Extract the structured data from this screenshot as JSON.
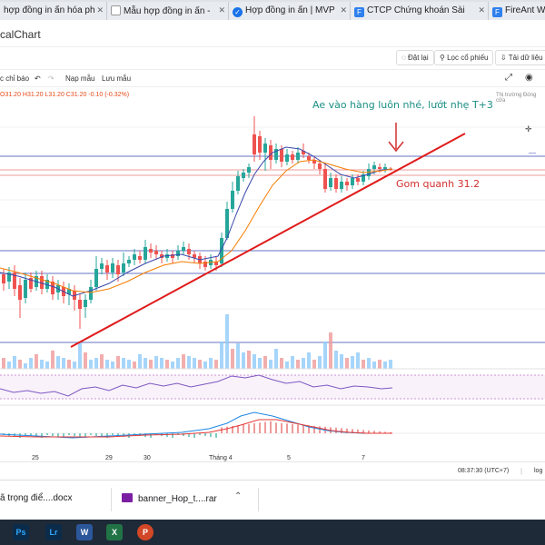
{
  "browser_tabs": [
    {
      "title": "hợp đồng in ấn hóa ph",
      "icon": "web-icon",
      "color": "#ffffff"
    },
    {
      "title": "Mẫu hợp đồng in ấn -",
      "icon": "page-icon",
      "color": "#ffffff"
    },
    {
      "title": "Hợp đồng in ấn | MVP",
      "icon": "shield-icon",
      "color": "#1a73e8"
    },
    {
      "title": "CTCP Chứng khoán Sài",
      "icon": "F",
      "color": "#2f80ed"
    },
    {
      "title": "FireAnt Web",
      "icon": "F",
      "color": "#2f80ed"
    }
  ],
  "page_subtitle": "calChart",
  "toolbar_top": {
    "alert": "Đặt lại",
    "filter": "Lọc cổ phiếu",
    "reload": "Tải dữ liệu"
  },
  "toolbar_chart": {
    "indicators": "c chỉ báo",
    "template_in": "Nạp mẫu",
    "template_save": "Lưu mẫu"
  },
  "ohlc_text": "O31.20 H31.20 L31.20 C31.20 -0.10 (-0.32%)",
  "market_label": "Thị trường Đóng cửa",
  "annotations": {
    "top": "Ae vào hàng luôn nhé, lướt nhẹ T+3",
    "support": "Gom quanh 31.2"
  },
  "x_labels": [
    "25",
    "29",
    "30",
    "Tháng 4",
    "5",
    "7"
  ],
  "time_text": "08:37:30 (UTC+7)",
  "time_suffix": "log",
  "downloads": [
    {
      "name": "ã trọng điể....docx",
      "icon": "word-icon"
    },
    {
      "name": "banner_Hop_t....rar",
      "icon": "archive-icon"
    }
  ],
  "taskbar_apps": [
    {
      "label": "Ps",
      "icon": "photoshop-icon",
      "color": "#0b2b4a"
    },
    {
      "label": "Lr",
      "icon": "lightroom-icon",
      "color": "#0b2b4a"
    },
    {
      "label": "W",
      "icon": "word-icon",
      "color": "#2b579a"
    },
    {
      "label": "X",
      "icon": "excel-icon",
      "color": "#217346"
    },
    {
      "label": "P",
      "icon": "powerpoint-icon",
      "color": "#d24726"
    }
  ],
  "colors": {
    "up": "#26a69a",
    "down": "#ef5350",
    "trend": "#e01b1b",
    "annot_teal": "#1b8f84",
    "annot_red": "#d32f2f"
  }
}
